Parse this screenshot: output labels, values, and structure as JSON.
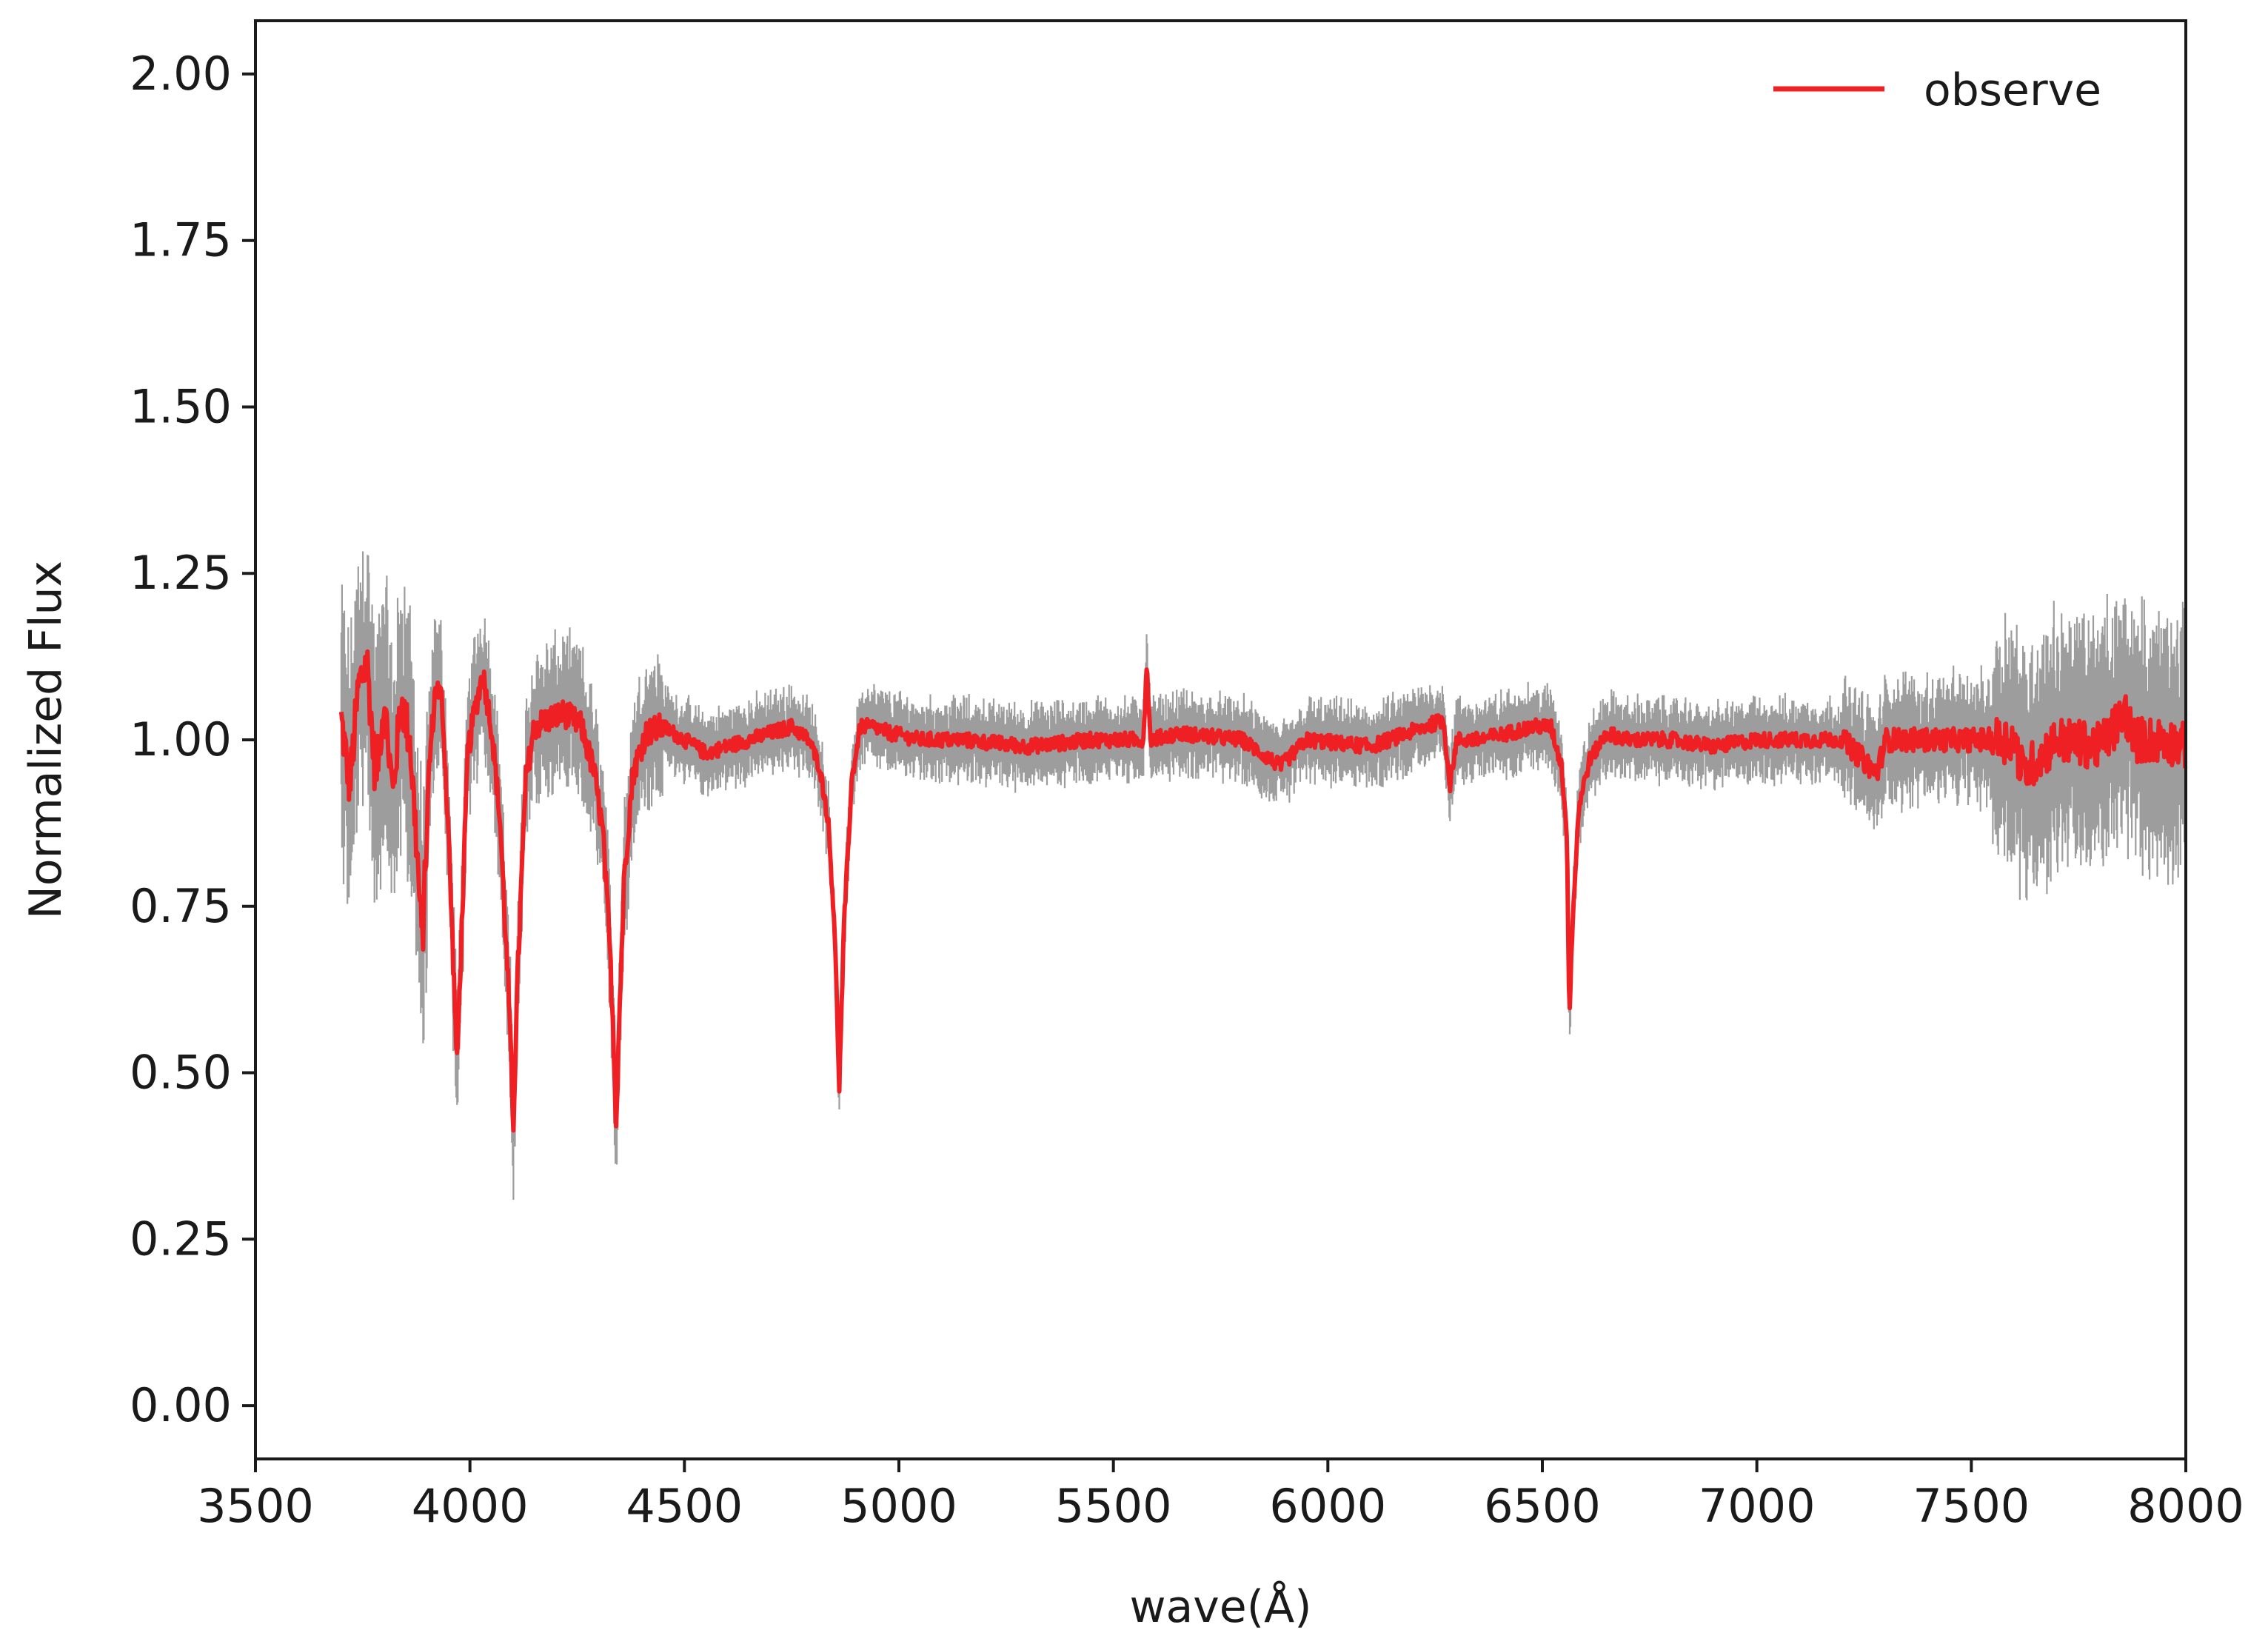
{
  "chart_data": {
    "type": "line",
    "title": "",
    "xlabel": "wave(Å)",
    "ylabel": "Normalized Flux",
    "xlim": [
      3500,
      8000
    ],
    "ylim": [
      -0.08,
      2.08
    ],
    "xticks": [
      3500,
      4000,
      4500,
      5000,
      5500,
      6000,
      6500,
      7000,
      7500,
      8000
    ],
    "xtick_labels": [
      "3500",
      "4000",
      "4500",
      "5000",
      "5500",
      "6000",
      "6500",
      "7000",
      "7500",
      "8000"
    ],
    "yticks": [
      0.0,
      0.25,
      0.5,
      0.75,
      1.0,
      1.25,
      1.5,
      1.75,
      2.0
    ],
    "ytick_labels": [
      "0.00",
      "0.25",
      "0.50",
      "0.75",
      "1.00",
      "1.25",
      "1.50",
      "1.75",
      "2.00"
    ],
    "grid": false,
    "legend": {
      "position": "top-right",
      "entries": [
        {
          "label": "observe",
          "color": "#ee2024"
        }
      ]
    },
    "error_band": {
      "color": "#8c8c8c"
    },
    "series": [
      {
        "name": "observe",
        "color": "#ee2024",
        "x": [
          3700,
          3720,
          3740,
          3760,
          3780,
          3800,
          3820,
          3840,
          3860,
          3875,
          3889,
          3905,
          3920,
          3935,
          3950,
          3962,
          3970,
          3980,
          3995,
          4010,
          4030,
          4050,
          4070,
          4090,
          4101,
          4112,
          4130,
          4150,
          4180,
          4220,
          4260,
          4290,
          4310,
          4325,
          4335,
          4341,
          4347,
          4360,
          4380,
          4410,
          4450,
          4500,
          4550,
          4600,
          4650,
          4700,
          4750,
          4790,
          4815,
          4835,
          4850,
          4861,
          4872,
          4890,
          4910,
          4940,
          4980,
          5050,
          5150,
          5300,
          5450,
          5570,
          5578,
          5586,
          5650,
          5800,
          5890,
          5950,
          6100,
          6270,
          6284,
          6300,
          6350,
          6420,
          6480,
          6520,
          6545,
          6557,
          6563,
          6570,
          6585,
          6610,
          6650,
          6700,
          6800,
          6900,
          7000,
          7100,
          7200,
          7280,
          7300,
          7400,
          7500,
          7600,
          7620,
          7700,
          7800,
          7860,
          7880,
          7950,
          8000
        ],
        "y": [
          1.03,
          0.93,
          1.08,
          1.12,
          0.94,
          1.06,
          0.92,
          1.06,
          1.0,
          0.85,
          0.69,
          0.96,
          1.08,
          1.06,
          0.86,
          0.65,
          0.51,
          0.7,
          0.98,
          1.04,
          1.1,
          1.02,
          0.88,
          0.62,
          0.42,
          0.66,
          0.94,
          1.02,
          1.03,
          1.04,
          1.02,
          0.95,
          0.86,
          0.7,
          0.55,
          0.42,
          0.56,
          0.8,
          0.95,
          1.01,
          1.02,
          1.0,
          0.98,
          0.99,
          1.0,
          1.01,
          1.02,
          1.0,
          0.96,
          0.88,
          0.72,
          0.48,
          0.72,
          0.94,
          1.02,
          1.02,
          1.01,
          1.0,
          1.0,
          0.99,
          1.0,
          1.0,
          1.12,
          1.0,
          1.01,
          1.0,
          0.96,
          1.0,
          0.99,
          1.03,
          0.93,
          1.0,
          1.0,
          1.01,
          1.02,
          1.02,
          0.96,
          0.86,
          0.59,
          0.72,
          0.9,
          0.97,
          1.01,
          1.0,
          1.0,
          0.99,
          1.0,
          1.0,
          1.0,
          0.95,
          1.0,
          1.0,
          1.0,
          1.0,
          0.95,
          1.0,
          0.99,
          1.04,
          1.0,
          1.0,
          0.99
        ]
      }
    ]
  }
}
